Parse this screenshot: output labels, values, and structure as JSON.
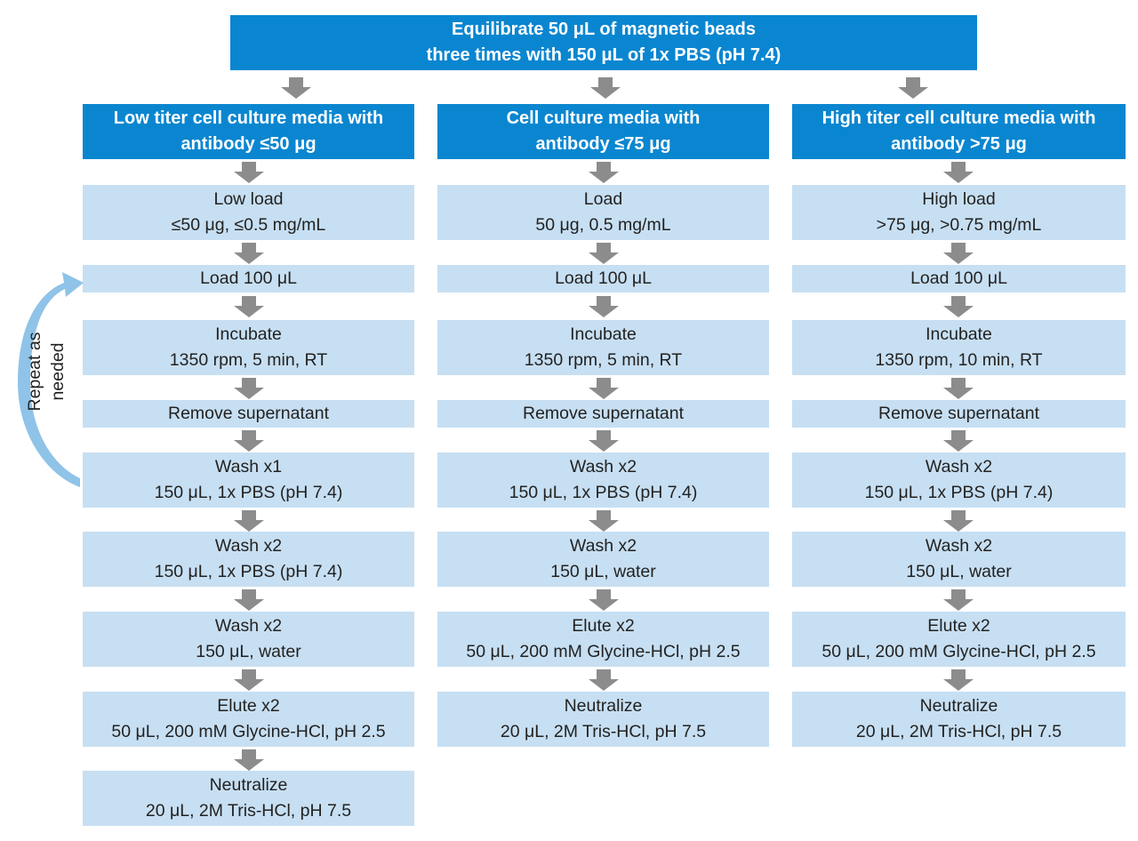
{
  "top_box": {
    "line1": "Equilibrate 50 μL of magnetic beads",
    "line2": "three times with 150 μL of 1x PBS (pH 7.4)"
  },
  "repeat_label": {
    "line1": "Repeat as",
    "line2": "needed"
  },
  "columns": [
    {
      "header": {
        "line1": "Low titer cell culture media with",
        "line2": "antibody ≤50 μg"
      },
      "steps": [
        {
          "line1": "Low load",
          "line2": "≤50 μg, ≤0.5 mg/mL"
        },
        {
          "line1": "Load 100 μL"
        },
        {
          "line1": "Incubate",
          "line2": "1350 rpm, 5 min, RT"
        },
        {
          "line1": "Remove supernatant"
        },
        {
          "line1": "Wash x1",
          "line2": "150 μL, 1x PBS (pH 7.4)"
        },
        {
          "line1": "Wash x2",
          "line2": "150 μL, 1x PBS (pH 7.4)"
        },
        {
          "line1": "Wash x2",
          "line2": "150 μL, water"
        },
        {
          "line1": "Elute x2",
          "line2": "50 μL, 200 mM Glycine-HCl, pH 2.5"
        },
        {
          "line1": "Neutralize",
          "line2": "20 μL, 2M Tris-HCl, pH 7.5"
        }
      ]
    },
    {
      "header": {
        "line1": "Cell culture media with",
        "line2": "antibody ≤75 μg"
      },
      "steps": [
        {
          "line1": "Load",
          "line2": "50 μg, 0.5 mg/mL"
        },
        {
          "line1": "Load 100 μL"
        },
        {
          "line1": "Incubate",
          "line2": "1350 rpm, 5 min, RT"
        },
        {
          "line1": "Remove supernatant"
        },
        {
          "line1": "Wash x2",
          "line2": "150 μL, 1x PBS (pH 7.4)"
        },
        {
          "line1": "Wash x2",
          "line2": "150 μL, water"
        },
        {
          "line1": "Elute x2",
          "line2": "50 μL, 200 mM Glycine-HCl, pH 2.5"
        },
        {
          "line1": "Neutralize",
          "line2": "20 μL, 2M Tris-HCl, pH 7.5"
        }
      ]
    },
    {
      "header": {
        "line1": "High titer cell culture media with",
        "line2": "antibody >75 μg"
      },
      "steps": [
        {
          "line1": "High load",
          "line2": ">75 μg, >0.75 mg/mL"
        },
        {
          "line1": "Load 100 μL"
        },
        {
          "line1": "Incubate",
          "line2": "1350 rpm, 10 min, RT"
        },
        {
          "line1": "Remove supernatant"
        },
        {
          "line1": "Wash x2",
          "line2": "150 μL, 1x PBS (pH 7.4)"
        },
        {
          "line1": "Wash x2",
          "line2": "150 μL, water"
        },
        {
          "line1": "Elute x2",
          "line2": "50 μL, 200 mM Glycine-HCl, pH 2.5"
        },
        {
          "line1": "Neutralize",
          "line2": "20 μL, 2M Tris-HCl, pH 7.5"
        }
      ]
    }
  ],
  "colors": {
    "header_fill": "#0a86d0",
    "step_fill": "#c7dff2",
    "arrow": "#8c8c8c",
    "repeat_arrow": "#8fc3e8"
  }
}
